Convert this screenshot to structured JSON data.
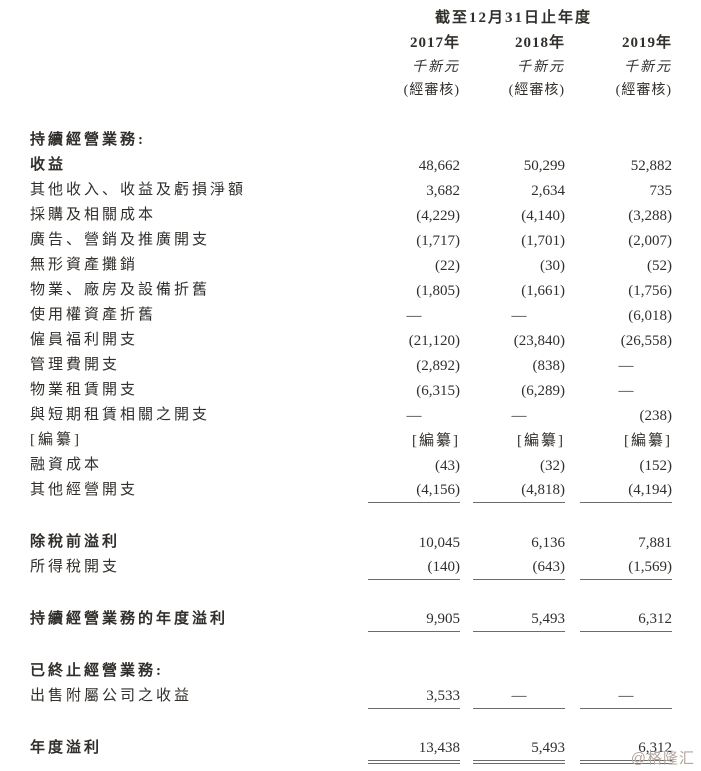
{
  "header": {
    "period_title": "截至12月31日止年度",
    "columns": [
      {
        "year": "2017年",
        "unit": "千新元",
        "audit": "(經審核)"
      },
      {
        "year": "2018年",
        "unit": "千新元",
        "audit": "(經審核)"
      },
      {
        "year": "2019年",
        "unit": "千新元",
        "audit": "(經審核)"
      }
    ]
  },
  "table": {
    "rows": [
      {
        "label": "持續經營業務:",
        "bold": true,
        "values": [
          "",
          "",
          ""
        ],
        "rule": "none",
        "gap_before": false
      },
      {
        "label": "收益",
        "bold": true,
        "values": [
          "48,662",
          "50,299",
          "52,882"
        ],
        "rule": "none",
        "gap_before": false
      },
      {
        "label": "其他收入、收益及虧損淨額",
        "bold": false,
        "values": [
          "3,682",
          "2,634",
          "735"
        ],
        "rule": "none",
        "gap_before": false
      },
      {
        "label": "採購及相關成本",
        "bold": false,
        "values": [
          "(4,229)",
          "(4,140)",
          "(3,288)"
        ],
        "rule": "none",
        "gap_before": false
      },
      {
        "label": "廣告、營銷及推廣開支",
        "bold": false,
        "values": [
          "(1,717)",
          "(1,701)",
          "(2,007)"
        ],
        "rule": "none",
        "gap_before": false
      },
      {
        "label": "無形資產攤銷",
        "bold": false,
        "values": [
          "(22)",
          "(30)",
          "(52)"
        ],
        "rule": "none",
        "gap_before": false
      },
      {
        "label": "物業、廠房及設備折舊",
        "bold": false,
        "values": [
          "(1,805)",
          "(1,661)",
          "(1,756)"
        ],
        "rule": "none",
        "gap_before": false
      },
      {
        "label": "使用權資產折舊",
        "bold": false,
        "values": [
          "—",
          "—",
          "(6,018)"
        ],
        "rule": "none",
        "gap_before": false
      },
      {
        "label": "僱員福利開支",
        "bold": false,
        "values": [
          "(21,120)",
          "(23,840)",
          "(26,558)"
        ],
        "rule": "none",
        "gap_before": false
      },
      {
        "label": "管理費開支",
        "bold": false,
        "values": [
          "(2,892)",
          "(838)",
          "—"
        ],
        "rule": "none",
        "gap_before": false
      },
      {
        "label": "物業租賃開支",
        "bold": false,
        "values": [
          "(6,315)",
          "(6,289)",
          "—"
        ],
        "rule": "none",
        "gap_before": false
      },
      {
        "label": "與短期租賃相關之開支",
        "bold": false,
        "values": [
          "—",
          "—",
          "(238)"
        ],
        "rule": "none",
        "gap_before": false
      },
      {
        "label": "[編纂]",
        "bold": false,
        "values": [
          "[編纂]",
          "[編纂]",
          "[編纂]"
        ],
        "rule": "none",
        "gap_before": false
      },
      {
        "label": "融資成本",
        "bold": false,
        "values": [
          "(43)",
          "(32)",
          "(152)"
        ],
        "rule": "none",
        "gap_before": false
      },
      {
        "label": "其他經營開支",
        "bold": false,
        "values": [
          "(4,156)",
          "(4,818)",
          "(4,194)"
        ],
        "rule": "single",
        "gap_before": false
      },
      {
        "label": "除稅前溢利",
        "bold": true,
        "values": [
          "10,045",
          "6,136",
          "7,881"
        ],
        "rule": "none",
        "gap_before": true
      },
      {
        "label": "所得稅開支",
        "bold": false,
        "values": [
          "(140)",
          "(643)",
          "(1,569)"
        ],
        "rule": "single",
        "gap_before": false
      },
      {
        "label": "持續經營業務的年度溢利",
        "bold": true,
        "values": [
          "9,905",
          "5,493",
          "6,312"
        ],
        "rule": "single",
        "gap_before": true
      },
      {
        "label": "已終止經營業務:",
        "bold": true,
        "values": [
          "",
          "",
          ""
        ],
        "rule": "none",
        "gap_before": true
      },
      {
        "label": "出售附屬公司之收益",
        "bold": false,
        "values": [
          "3,533",
          "—",
          "—"
        ],
        "rule": "single",
        "gap_before": false
      },
      {
        "label": "年度溢利",
        "bold": true,
        "values": [
          "13,438",
          "5,493",
          "6,312"
        ],
        "rule": "double",
        "gap_before": true
      }
    ]
  },
  "watermark": "@格隆汇",
  "colors": {
    "text": "#312e2b",
    "rule": "#6e6a66",
    "watermark": "#b4a7a0"
  }
}
